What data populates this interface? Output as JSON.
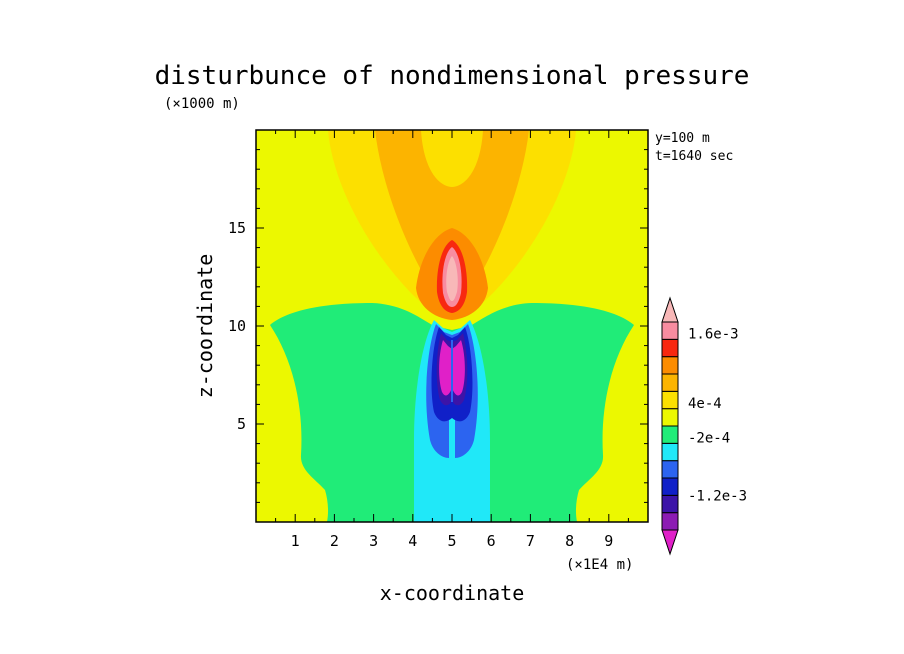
{
  "chart_data": {
    "type": "heatmap",
    "title": "disturbunce of nondimensional pressure",
    "xlabel": "x-coordinate",
    "ylabel": "z-coordinate",
    "x_unit": "(×1E4 m)",
    "y_unit": "(×1000 m)",
    "annotations": [
      "y=100 m",
      "t=1640 sec"
    ],
    "xlim": [
      0,
      10
    ],
    "ylim": [
      0,
      20
    ],
    "x_ticks": [
      "1",
      "2",
      "3",
      "4",
      "5",
      "6",
      "7",
      "8",
      "9"
    ],
    "y_ticks": [
      "5",
      "10",
      "15"
    ],
    "colorbar": {
      "levels": [
        -0.0018,
        -0.0015,
        -0.0012,
        -0.0009,
        -0.0006,
        -0.0003,
        0,
        0.0003,
        0.0006,
        0.0009,
        0.0012,
        0.0015,
        0.0018
      ],
      "colors": [
        "#e020c8",
        "#8c1cb4",
        "#3c14a8",
        "#1020c8",
        "#2c64f0",
        "#20e8f8",
        "#20ec78",
        "#ecf800",
        "#fce000",
        "#fcb400",
        "#fc8c00",
        "#f82810",
        "#f88ca0",
        "#f8b8b8"
      ],
      "labels": [
        "-1.2e-3",
        "-2e-4",
        "4e-4",
        "1.6e-3"
      ],
      "label_values": [
        -0.0012,
        -0.0002,
        0.0004,
        0.0016
      ]
    },
    "background_color": "#ecf800"
  }
}
